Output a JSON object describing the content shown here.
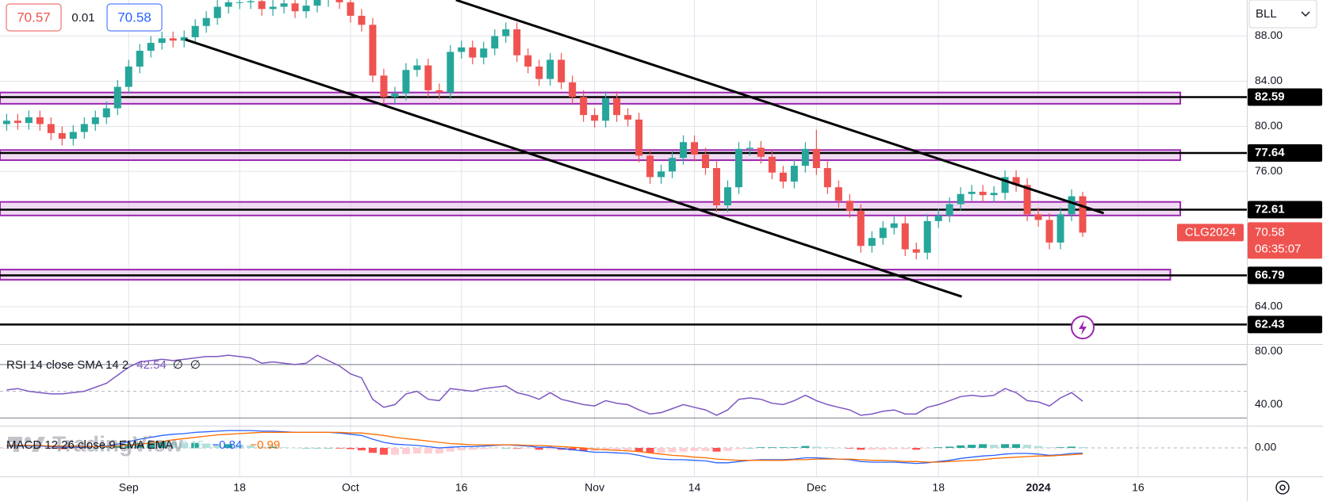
{
  "chart_data": [
    {
      "type": "candlestick",
      "quote": {
        "sell": 70.57,
        "spread": 0.01,
        "buy": 70.58
      },
      "symbol_box": "BLL",
      "symbol": "CLG2024",
      "countdown": "06:35:07",
      "watermark": "TradingView",
      "up_color": "#26a69a",
      "down_color": "#ef5350",
      "xlim": [
        -0.6,
        111.8
      ],
      "xticks": [
        {
          "value": 11,
          "label": "Sep"
        },
        {
          "value": 21,
          "label": "18"
        },
        {
          "value": 31,
          "label": "Oct"
        },
        {
          "value": 41,
          "label": "16"
        },
        {
          "value": 53,
          "label": "Nov"
        },
        {
          "value": 62,
          "label": "14"
        },
        {
          "value": 73,
          "label": "Dec"
        },
        {
          "value": 84,
          "label": "18"
        },
        {
          "value": 93,
          "label": "2024"
        },
        {
          "value": 102,
          "label": "16"
        }
      ],
      "ylim": [
        60.7,
        91.2
      ],
      "yticks": [
        {
          "value": 88,
          "label": "88.00"
        },
        {
          "value": 84,
          "label": "84.00"
        },
        {
          "value": 80,
          "label": "80.00"
        },
        {
          "value": 76,
          "label": "76.00"
        },
        {
          "value": 64,
          "label": "64.00"
        }
      ],
      "grid": true,
      "levels": [
        82.59,
        77.64,
        72.61,
        66.79,
        62.43
      ],
      "zones": [
        {
          "range": [
            82.0,
            83.0
          ],
          "end": 105.8
        },
        {
          "range": [
            77.0,
            77.9
          ],
          "end": 105.8
        },
        {
          "range": [
            72.1,
            73.3
          ],
          "end": 105.8
        },
        {
          "range": [
            66.4,
            67.3
          ],
          "end": 104.9
        }
      ],
      "trendlines": [
        {
          "from": [
            40.5,
            91.2
          ],
          "to": [
            98.9,
            72.3
          ]
        },
        {
          "from": [
            16.1,
            87.7
          ],
          "to": [
            86.1,
            64.9
          ]
        }
      ],
      "open": [
        80.2,
        80.5,
        80.3,
        80.8,
        80.2,
        79.4,
        78.9,
        79.5,
        80.2,
        80.8,
        81.6,
        83.5,
        85.3,
        86.7,
        87.4,
        87.8,
        87.6,
        87.9,
        88.9,
        89.6,
        90.6,
        91.0,
        91.0,
        91.1,
        90.4,
        90.6,
        90.9,
        90.2,
        90.7,
        91.2,
        91.4,
        91.0,
        89.8,
        89.0,
        84.5,
        82.6,
        82.9,
        85.0,
        85.4,
        83.2,
        83.0,
        86.6,
        87.0,
        86.1,
        86.9,
        88.0,
        88.6,
        86.3,
        85.3,
        84.2,
        85.9,
        83.9,
        82.6,
        81.0,
        80.5,
        82.5,
        81.0,
        80.6,
        77.4,
        75.5,
        76.0,
        77.2,
        78.6,
        77.5,
        76.3,
        73.0,
        74.6,
        78.0,
        78.1,
        77.3,
        75.9,
        75.1,
        76.5,
        78.0,
        76.3,
        74.6,
        73.4,
        72.5,
        69.4,
        70.1,
        71.0,
        71.4,
        69.1,
        68.8,
        71.6,
        72.1,
        73.1,
        74.0,
        74.2,
        73.9,
        74.1,
        75.5,
        74.8,
        72.2,
        71.7,
        69.7,
        72.2,
        73.8
      ],
      "high": [
        81.1,
        81.1,
        81.4,
        81.4,
        80.8,
        80.0,
        80.1,
        80.8,
        81.4,
        82.2,
        84.1,
        85.9,
        87.3,
        88.0,
        88.4,
        88.4,
        88.5,
        89.5,
        90.2,
        91.2,
        91.6,
        91.6,
        91.7,
        91.7,
        91.2,
        91.5,
        91.5,
        91.3,
        91.8,
        92.0,
        92.0,
        91.6,
        90.4,
        89.6,
        85.1,
        83.5,
        85.6,
        86.0,
        86.0,
        83.8,
        87.2,
        87.6,
        87.6,
        87.5,
        88.6,
        89.2,
        89.2,
        86.9,
        85.9,
        86.5,
        86.5,
        84.5,
        83.2,
        81.6,
        83.1,
        83.1,
        81.6,
        81.2,
        78.0,
        76.6,
        77.8,
        79.2,
        79.2,
        78.1,
        76.9,
        75.2,
        78.6,
        78.7,
        78.7,
        77.9,
        76.5,
        77.1,
        78.6,
        79.7,
        76.9,
        75.2,
        74.0,
        73.1,
        70.7,
        71.6,
        72.0,
        72.0,
        69.7,
        72.2,
        72.7,
        73.7,
        74.6,
        74.8,
        74.8,
        74.7,
        76.1,
        76.1,
        75.4,
        72.8,
        72.3,
        72.8,
        74.4,
        74.2
      ],
      "low": [
        79.6,
        79.7,
        79.7,
        79.6,
        78.8,
        78.3,
        78.3,
        78.9,
        79.6,
        80.2,
        81.0,
        82.9,
        84.7,
        86.1,
        86.8,
        87.0,
        87.0,
        87.3,
        88.3,
        89.0,
        90.0,
        90.4,
        90.4,
        89.8,
        89.8,
        90.0,
        89.6,
        89.6,
        90.1,
        90.6,
        90.4,
        89.2,
        88.4,
        83.9,
        82.0,
        82.0,
        82.3,
        84.4,
        82.6,
        82.4,
        82.4,
        86.0,
        85.5,
        85.5,
        86.3,
        87.4,
        85.7,
        84.7,
        83.6,
        83.6,
        83.3,
        82.0,
        80.4,
        79.9,
        79.9,
        80.4,
        80.0,
        76.8,
        74.9,
        74.9,
        75.4,
        76.6,
        76.9,
        75.7,
        72.4,
        72.4,
        74.0,
        77.4,
        76.7,
        75.3,
        74.5,
        74.5,
        75.9,
        75.7,
        74.0,
        72.8,
        71.9,
        68.8,
        68.8,
        69.5,
        70.4,
        68.5,
        68.2,
        68.2,
        71.0,
        71.5,
        72.5,
        73.4,
        73.3,
        73.3,
        73.5,
        74.2,
        71.6,
        71.1,
        69.1,
        69.1,
        71.6,
        70.2
      ],
      "close": [
        80.5,
        80.3,
        80.8,
        80.2,
        79.4,
        78.9,
        79.5,
        80.2,
        80.8,
        81.6,
        83.5,
        85.3,
        86.7,
        87.4,
        87.8,
        87.6,
        87.9,
        88.9,
        89.6,
        90.6,
        91.0,
        91.0,
        91.1,
        90.4,
        90.6,
        90.9,
        90.2,
        90.7,
        91.2,
        91.4,
        91.0,
        89.8,
        89.0,
        84.5,
        82.6,
        82.9,
        85.0,
        85.4,
        83.2,
        83.0,
        86.6,
        87.0,
        86.1,
        86.9,
        88.0,
        88.6,
        86.3,
        85.3,
        84.2,
        85.9,
        83.9,
        82.6,
        81.0,
        80.5,
        82.5,
        81.0,
        80.6,
        77.4,
        75.5,
        76.0,
        77.2,
        78.6,
        77.5,
        76.3,
        73.0,
        74.6,
        78.0,
        78.1,
        77.3,
        75.9,
        75.1,
        76.5,
        78.0,
        76.3,
        74.6,
        73.4,
        72.5,
        69.4,
        70.1,
        71.0,
        71.4,
        69.1,
        68.8,
        71.6,
        72.1,
        73.1,
        74.0,
        74.2,
        73.9,
        74.1,
        75.5,
        74.8,
        72.2,
        71.7,
        69.7,
        72.2,
        73.8,
        70.58
      ]
    },
    {
      "type": "line",
      "title": "RSI 14 close SMA 14 2",
      "na_labels": [
        "∅",
        "∅"
      ],
      "color": "#7e57c2",
      "ylim": [
        24.2,
        84.8
      ],
      "yticks": [
        {
          "value": 80,
          "label": "80.00"
        },
        {
          "value": 40,
          "label": "40.00"
        }
      ],
      "bands": [
        70,
        30
      ],
      "midline": 50,
      "values": [
        51,
        52,
        50,
        49,
        48,
        48,
        49,
        50,
        53,
        56,
        62,
        68,
        72,
        73,
        74,
        73,
        74,
        75,
        76,
        76,
        77,
        76,
        75,
        71,
        72,
        71,
        70,
        71,
        77,
        73,
        69,
        63,
        60,
        44,
        38,
        40,
        48,
        50,
        44,
        43,
        52,
        51,
        50,
        52,
        53,
        54,
        49,
        47,
        44,
        49,
        44,
        42,
        40,
        39,
        43,
        41,
        40,
        36,
        33,
        34,
        37,
        40,
        38,
        36,
        32,
        36,
        44,
        45,
        44,
        41,
        40,
        43,
        47,
        43,
        40,
        38,
        36,
        32,
        33,
        35,
        36,
        33,
        33,
        38,
        40,
        43,
        46,
        47,
        46,
        47,
        52,
        49,
        43,
        42,
        39,
        45,
        49,
        42.54
      ]
    },
    {
      "type": "macd",
      "title": "MACD 12 26 close 9 EMA EMA",
      "macd_color": "#2962ff",
      "signal_color": "#ff6d00",
      "histogram_colors": [
        "#26a69a",
        "#b2dfdb",
        "#ffcdd2",
        "#ff5252"
      ],
      "macd_last_label": "−0.84",
      "signal_last_label": "−0.99",
      "ylim": [
        -4.6,
        3.45
      ],
      "yticks": [
        {
          "value": 0,
          "label": "0.00"
        }
      ],
      "histogram": [
        -0.1,
        -0.1,
        -0.1,
        -0.1,
        -0.1,
        -0.2,
        -0.2,
        -0.1,
        0,
        0.1,
        0.3,
        0.6,
        0.8,
        0.9,
        1.0,
        0.9,
        0.8,
        0.8,
        0.7,
        0.6,
        0.6,
        0.5,
        0.4,
        0.2,
        0.2,
        0.1,
        0,
        0,
        0,
        0,
        -0.1,
        -0.2,
        -0.4,
        -0.8,
        -1.1,
        -1.1,
        -1.0,
        -0.9,
        -0.9,
        -0.9,
        -0.6,
        -0.4,
        -0.3,
        -0.2,
        -0.1,
        0,
        -0.1,
        -0.1,
        -0.3,
        -0.2,
        -0.3,
        -0.4,
        -0.5,
        -0.5,
        -0.4,
        -0.4,
        -0.4,
        -0.6,
        -0.8,
        -0.8,
        -0.7,
        -0.6,
        -0.5,
        -0.5,
        -0.6,
        -0.5,
        -0.2,
        0,
        0.1,
        0.1,
        0.1,
        0.1,
        0.3,
        0.2,
        0.1,
        0,
        -0.1,
        -0.3,
        -0.3,
        -0.3,
        -0.2,
        -0.2,
        -0.3,
        -0.1,
        0.1,
        0.2,
        0.4,
        0.5,
        0.6,
        0.5,
        0.6,
        0.6,
        0.5,
        0.3,
        0.1,
        0.1,
        0.2,
        0.15
      ],
      "macd": [
        0.3,
        0.3,
        0.3,
        0.3,
        0.2,
        0.1,
        0.1,
        0.1,
        0.2,
        0.3,
        0.6,
        1.0,
        1.4,
        1.7,
        2.0,
        2.2,
        2.3,
        2.5,
        2.6,
        2.7,
        2.8,
        2.8,
        2.8,
        2.7,
        2.7,
        2.6,
        2.5,
        2.5,
        2.5,
        2.5,
        2.4,
        2.2,
        2.0,
        1.4,
        0.9,
        0.6,
        0.5,
        0.4,
        0.2,
        0.0,
        0.1,
        0.2,
        0.2,
        0.3,
        0.4,
        0.5,
        0.4,
        0.3,
        0.1,
        0.1,
        -0.1,
        -0.3,
        -0.5,
        -0.7,
        -0.7,
        -0.8,
        -0.9,
        -1.2,
        -1.6,
        -1.8,
        -1.9,
        -1.9,
        -2.0,
        -2.1,
        -2.4,
        -2.4,
        -2.2,
        -2.0,
        -1.9,
        -1.9,
        -1.9,
        -1.8,
        -1.6,
        -1.6,
        -1.7,
        -1.8,
        -1.9,
        -2.2,
        -2.3,
        -2.3,
        -2.3,
        -2.4,
        -2.5,
        -2.4,
        -2.2,
        -2.0,
        -1.7,
        -1.5,
        -1.3,
        -1.2,
        -1.0,
        -0.9,
        -0.9,
        -1.0,
        -1.2,
        -1.1,
        -0.9,
        -0.84
      ],
      "signal": [
        0.4,
        0.4,
        0.4,
        0.4,
        0.3,
        0.3,
        0.3,
        0.2,
        0.2,
        0.2,
        0.3,
        0.4,
        0.6,
        0.8,
        1.0,
        1.3,
        1.5,
        1.7,
        1.9,
        2.1,
        2.2,
        2.3,
        2.4,
        2.5,
        2.5,
        2.5,
        2.5,
        2.5,
        2.5,
        2.5,
        2.5,
        2.4,
        2.4,
        2.2,
        2.0,
        1.7,
        1.5,
        1.3,
        1.1,
        0.9,
        0.7,
        0.6,
        0.5,
        0.5,
        0.5,
        0.5,
        0.5,
        0.4,
        0.4,
        0.3,
        0.2,
        0.1,
        0.0,
        -0.2,
        -0.3,
        -0.4,
        -0.5,
        -0.6,
        -0.8,
        -1.0,
        -1.2,
        -1.3,
        -1.5,
        -1.6,
        -1.8,
        -1.9,
        -2.0,
        -2.0,
        -2.0,
        -2.0,
        -2.0,
        -1.9,
        -1.9,
        -1.8,
        -1.8,
        -1.8,
        -1.8,
        -1.9,
        -2.0,
        -2.0,
        -2.1,
        -2.2,
        -2.2,
        -2.3,
        -2.3,
        -2.2,
        -2.1,
        -2.0,
        -1.9,
        -1.7,
        -1.6,
        -1.5,
        -1.4,
        -1.3,
        -1.3,
        -1.2,
        -1.1,
        -0.99
      ]
    }
  ]
}
